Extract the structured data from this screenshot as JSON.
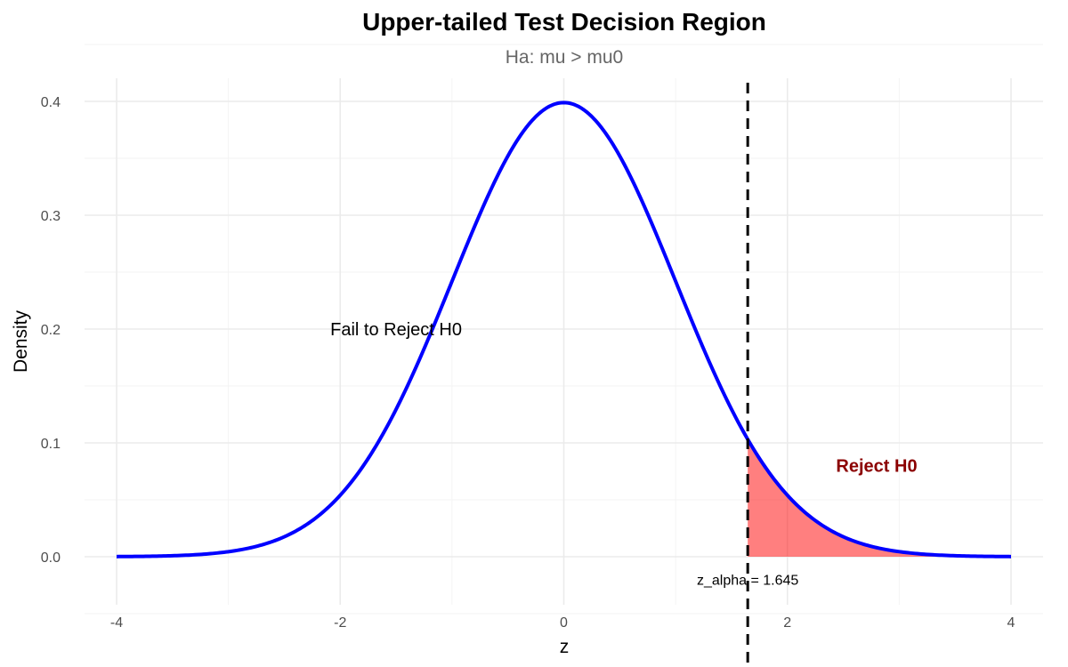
{
  "chart_data": {
    "type": "area",
    "title": "Upper-tailed Test Decision Region",
    "subtitle": "Ha: mu > mu0",
    "xlabel": "z",
    "ylabel": "Density",
    "xlim": [
      -4,
      4
    ],
    "ylim": [
      0,
      0.4
    ],
    "x_ticks": [
      -4,
      -2,
      0,
      2,
      4
    ],
    "x_tick_labels": [
      "-4",
      "-2",
      "0",
      "2",
      "4"
    ],
    "y_ticks": [
      0.0,
      0.1,
      0.2,
      0.3,
      0.4
    ],
    "y_tick_labels": [
      "0.0",
      "0.1",
      "0.2",
      "0.3",
      "0.4"
    ],
    "grid": true,
    "legend": "none",
    "series": [
      {
        "kind": "density-curve",
        "color": "#0000ff",
        "x": [
          -4.0,
          -3.5,
          -3.0,
          -2.5,
          -2.0,
          -1.5,
          -1.0,
          -0.5,
          0.0,
          0.5,
          1.0,
          1.5,
          1.645,
          2.0,
          2.5,
          3.0,
          3.5,
          4.0
        ],
        "y": [
          0.0001,
          0.0009,
          0.0044,
          0.0175,
          0.054,
          0.1295,
          0.242,
          0.3521,
          0.3989,
          0.3521,
          0.242,
          0.1295,
          0.1031,
          0.054,
          0.0175,
          0.0044,
          0.0009,
          0.0001
        ]
      }
    ],
    "rejection_region": {
      "from_x": 1.645,
      "to_x": 4.0,
      "color": "#ff0000",
      "opacity": 0.5
    },
    "critical_line": {
      "x": 1.645,
      "color": "#000000",
      "style": "dashed"
    },
    "annotations": [
      {
        "id": "fail",
        "text": "Fail to Reject H0",
        "x": -1.5,
        "y": 0.2,
        "color": "#000000"
      },
      {
        "id": "reject",
        "text": "Reject H0",
        "x": 2.4,
        "y": 0.08,
        "color": "#8b0000"
      },
      {
        "id": "crit",
        "text": "z_alpha = 1.645",
        "x": 1.645,
        "y": -0.02,
        "color": "#000000"
      }
    ]
  }
}
